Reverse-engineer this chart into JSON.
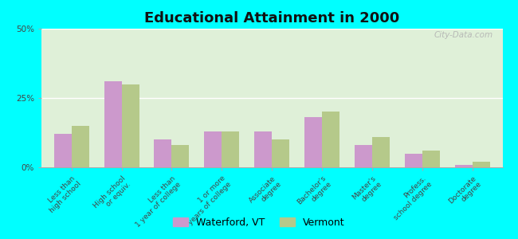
{
  "title": "Educational Attainment in 2000",
  "categories": [
    "Less than\nhigh school",
    "High school\nor equiv.",
    "Less than\n1 year of college",
    "1 or more\nyears of college",
    "Associate\ndegree",
    "Bachelor's\ndegree",
    "Master's\ndegree",
    "Profess.\nschool degree",
    "Doctorate\ndegree"
  ],
  "waterford": [
    12,
    31,
    10,
    13,
    13,
    18,
    8,
    5,
    1
  ],
  "vermont": [
    15,
    30,
    8,
    13,
    10,
    20,
    11,
    6,
    2
  ],
  "waterford_color": "#cc99cc",
  "vermont_color": "#b5c98a",
  "background_color": "#dff0d8",
  "outer_bg": "#00ffff",
  "ylim": [
    0,
    50
  ],
  "yticks": [
    0,
    25,
    50
  ],
  "ytick_labels": [
    "0%",
    "25%",
    "50%"
  ],
  "waterford_label": "Waterford, VT",
  "vermont_label": "Vermont",
  "bar_width": 0.35,
  "title_fontsize": 13,
  "tick_fontsize": 6.5,
  "legend_fontsize": 9,
  "watermark": "City-Data.com"
}
